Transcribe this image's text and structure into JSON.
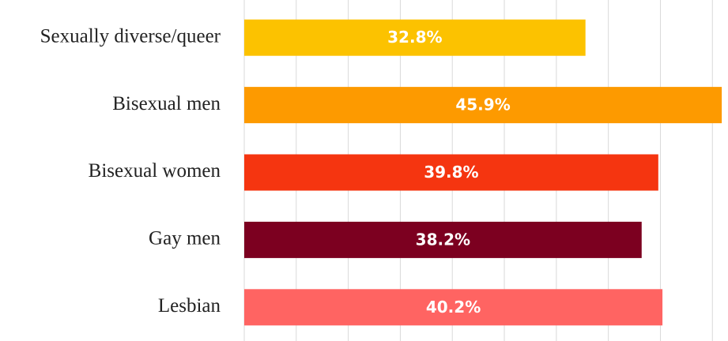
{
  "chart_data": {
    "type": "bar",
    "orientation": "horizontal",
    "categories": [
      "Sexually diverse/queer",
      "Bisexual men",
      "Bisexual women",
      "Gay men",
      "Lesbian"
    ],
    "values": [
      32.8,
      45.9,
      39.8,
      38.2,
      40.2
    ],
    "value_labels": [
      "32.8%",
      "45.9%",
      "39.8%",
      "38.2%",
      "40.2%"
    ],
    "colors": [
      "#fcc200",
      "#fd9a00",
      "#f53510",
      "#7c0020",
      "#ff6462"
    ],
    "xlim": [
      0,
      46.5
    ],
    "xticks": [
      0,
      5,
      10,
      15,
      20,
      25,
      30,
      35,
      40,
      45
    ],
    "grid": true
  }
}
